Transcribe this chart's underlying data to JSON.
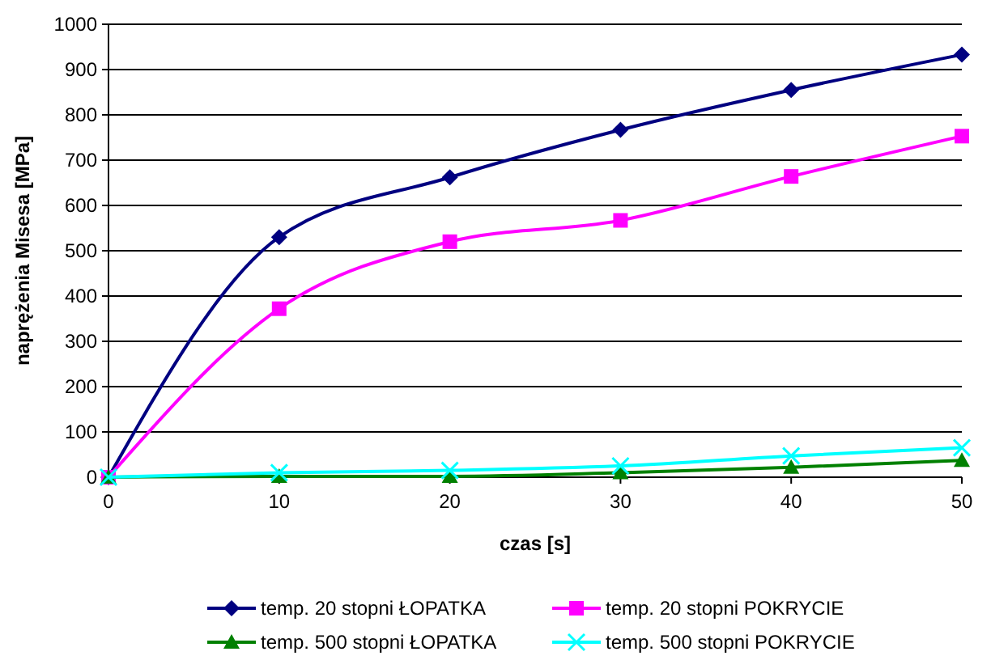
{
  "chart_data": {
    "type": "line",
    "xlabel": "czas [s]",
    "ylabel": "naprężenia Misesa [MPa]",
    "x": [
      0,
      10,
      20,
      30,
      40,
      50
    ],
    "series": [
      {
        "name": "temp. 20 stopni ŁOPATKA",
        "color": "#000080",
        "marker": "diamond",
        "values": [
          0,
          530,
          662,
          767,
          855,
          933
        ]
      },
      {
        "name": "temp. 20 stopni POKRYCIE",
        "color": "#ff00ff",
        "marker": "square",
        "values": [
          0,
          372,
          520,
          567,
          664,
          753
        ]
      },
      {
        "name": "temp. 500 stopni ŁOPATKA",
        "color": "#008000",
        "marker": "triangle",
        "values": [
          0,
          2,
          2,
          10,
          22,
          37
        ]
      },
      {
        "name": "temp. 500 stopni POKRYCIE",
        "color": "#00ffff",
        "marker": "cross",
        "values": [
          0,
          10,
          15,
          25,
          47,
          65
        ]
      }
    ],
    "xlim": [
      0,
      50
    ],
    "xticks": [
      0,
      10,
      20,
      30,
      40,
      50
    ],
    "ylim": [
      0,
      1000
    ],
    "yticks": [
      0,
      100,
      200,
      300,
      400,
      500,
      600,
      700,
      800,
      900,
      1000
    ],
    "grid": "y",
    "legend": "bottom",
    "line_style": "solid"
  }
}
